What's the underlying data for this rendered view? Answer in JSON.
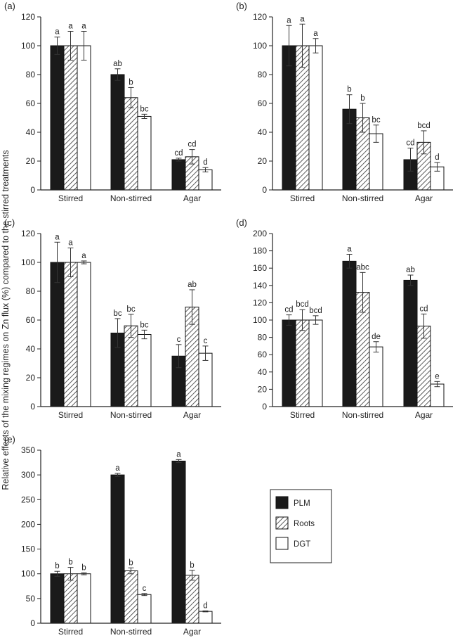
{
  "figure": {
    "ylabel": "Relative effects of the mixing regimes on Zn flux (%) compared to the stirred treatments"
  },
  "legend": {
    "items": [
      {
        "label": "PLM",
        "pattern": "solid"
      },
      {
        "label": "Roots",
        "pattern": "hatch"
      },
      {
        "label": "DGT",
        "pattern": "open"
      }
    ]
  },
  "colors": {
    "plm": "#1a1a1a",
    "roots_hatch": "#333333",
    "dgt": "#ffffff",
    "axis": "#222222"
  },
  "chart_data": [
    {
      "type": "bar",
      "panel": "(a)",
      "categories": [
        "Stirred",
        "Non-stirred",
        "Agar"
      ],
      "ylim": [
        0,
        120
      ],
      "yticks": [
        0,
        20,
        40,
        60,
        80,
        100,
        120
      ],
      "series": [
        {
          "name": "PLM",
          "values": [
            100,
            80,
            21
          ],
          "errors": [
            6,
            4,
            1
          ],
          "letters": [
            "a",
            "ab",
            "cd"
          ]
        },
        {
          "name": "Roots",
          "values": [
            100,
            64,
            23
          ],
          "errors": [
            10,
            7,
            5
          ],
          "letters": [
            "a",
            "b",
            "cd"
          ]
        },
        {
          "name": "DGT",
          "values": [
            100,
            51,
            14
          ],
          "errors": [
            10,
            1.5,
            1.5
          ],
          "letters": [
            "a",
            "bc",
            "d"
          ]
        }
      ]
    },
    {
      "type": "bar",
      "panel": "(b)",
      "categories": [
        "Stirred",
        "Non-stirred",
        "Agar"
      ],
      "ylim": [
        0,
        120
      ],
      "yticks": [
        0,
        20,
        40,
        60,
        80,
        100,
        120
      ],
      "series": [
        {
          "name": "PLM",
          "values": [
            100,
            56,
            21
          ],
          "errors": [
            14,
            10,
            8
          ],
          "letters": [
            "a",
            "b",
            "cd"
          ]
        },
        {
          "name": "Roots",
          "values": [
            100,
            50,
            33
          ],
          "errors": [
            15,
            10,
            8
          ],
          "letters": [
            "a",
            "b",
            "bcd"
          ]
        },
        {
          "name": "DGT",
          "values": [
            100,
            39,
            16
          ],
          "errors": [
            5,
            6,
            3
          ],
          "letters": [
            "a",
            "bc",
            "d"
          ]
        }
      ]
    },
    {
      "type": "bar",
      "panel": "(c)",
      "categories": [
        "Stirred",
        "Non-stirred",
        "Agar"
      ],
      "ylim": [
        0,
        120
      ],
      "yticks": [
        0,
        20,
        40,
        60,
        80,
        100,
        120
      ],
      "series": [
        {
          "name": "PLM",
          "values": [
            100,
            51,
            35
          ],
          "errors": [
            14,
            10,
            8
          ],
          "letters": [
            "a",
            "bc",
            "c"
          ]
        },
        {
          "name": "Roots",
          "values": [
            100,
            56,
            69
          ],
          "errors": [
            10,
            8,
            12
          ],
          "letters": [
            "a",
            "bc",
            "ab"
          ]
        },
        {
          "name": "DGT",
          "values": [
            100,
            50,
            37
          ],
          "errors": [
            1,
            3,
            5
          ],
          "letters": [
            "a",
            "bc",
            "c"
          ]
        }
      ]
    },
    {
      "type": "bar",
      "panel": "(d)",
      "categories": [
        "Stirred",
        "Non-stirred",
        "Agar"
      ],
      "ylim": [
        0,
        200
      ],
      "yticks": [
        0,
        20,
        40,
        60,
        80,
        100,
        120,
        140,
        160,
        180,
        200
      ],
      "series": [
        {
          "name": "PLM",
          "values": [
            100,
            168,
            146
          ],
          "errors": [
            6,
            8,
            6
          ],
          "letters": [
            "cd",
            "a",
            "ab"
          ]
        },
        {
          "name": "Roots",
          "values": [
            100,
            132,
            93
          ],
          "errors": [
            12,
            23,
            14
          ],
          "letters": [
            "bcd",
            "abc",
            "cd"
          ]
        },
        {
          "name": "DGT",
          "values": [
            100,
            69,
            26
          ],
          "errors": [
            5,
            6,
            3
          ],
          "letters": [
            "bcd",
            "de",
            "e"
          ]
        }
      ]
    },
    {
      "type": "bar",
      "panel": "(e)",
      "categories": [
        "Stirred",
        "Non-stirred",
        "Agar"
      ],
      "ylim": [
        0,
        350
      ],
      "yticks": [
        0,
        50,
        100,
        150,
        200,
        250,
        300,
        350
      ],
      "series": [
        {
          "name": "PLM",
          "values": [
            100,
            300,
            328
          ],
          "errors": [
            5,
            3,
            3
          ],
          "letters": [
            "b",
            "a",
            "a"
          ]
        },
        {
          "name": "Roots",
          "values": [
            100,
            106,
            97
          ],
          "errors": [
            13,
            6,
            10
          ],
          "letters": [
            "b",
            "b",
            "b"
          ]
        },
        {
          "name": "DGT",
          "values": [
            100,
            58,
            24
          ],
          "errors": [
            2,
            2,
            1
          ],
          "letters": [
            "b",
            "c",
            "d"
          ]
        }
      ]
    }
  ]
}
